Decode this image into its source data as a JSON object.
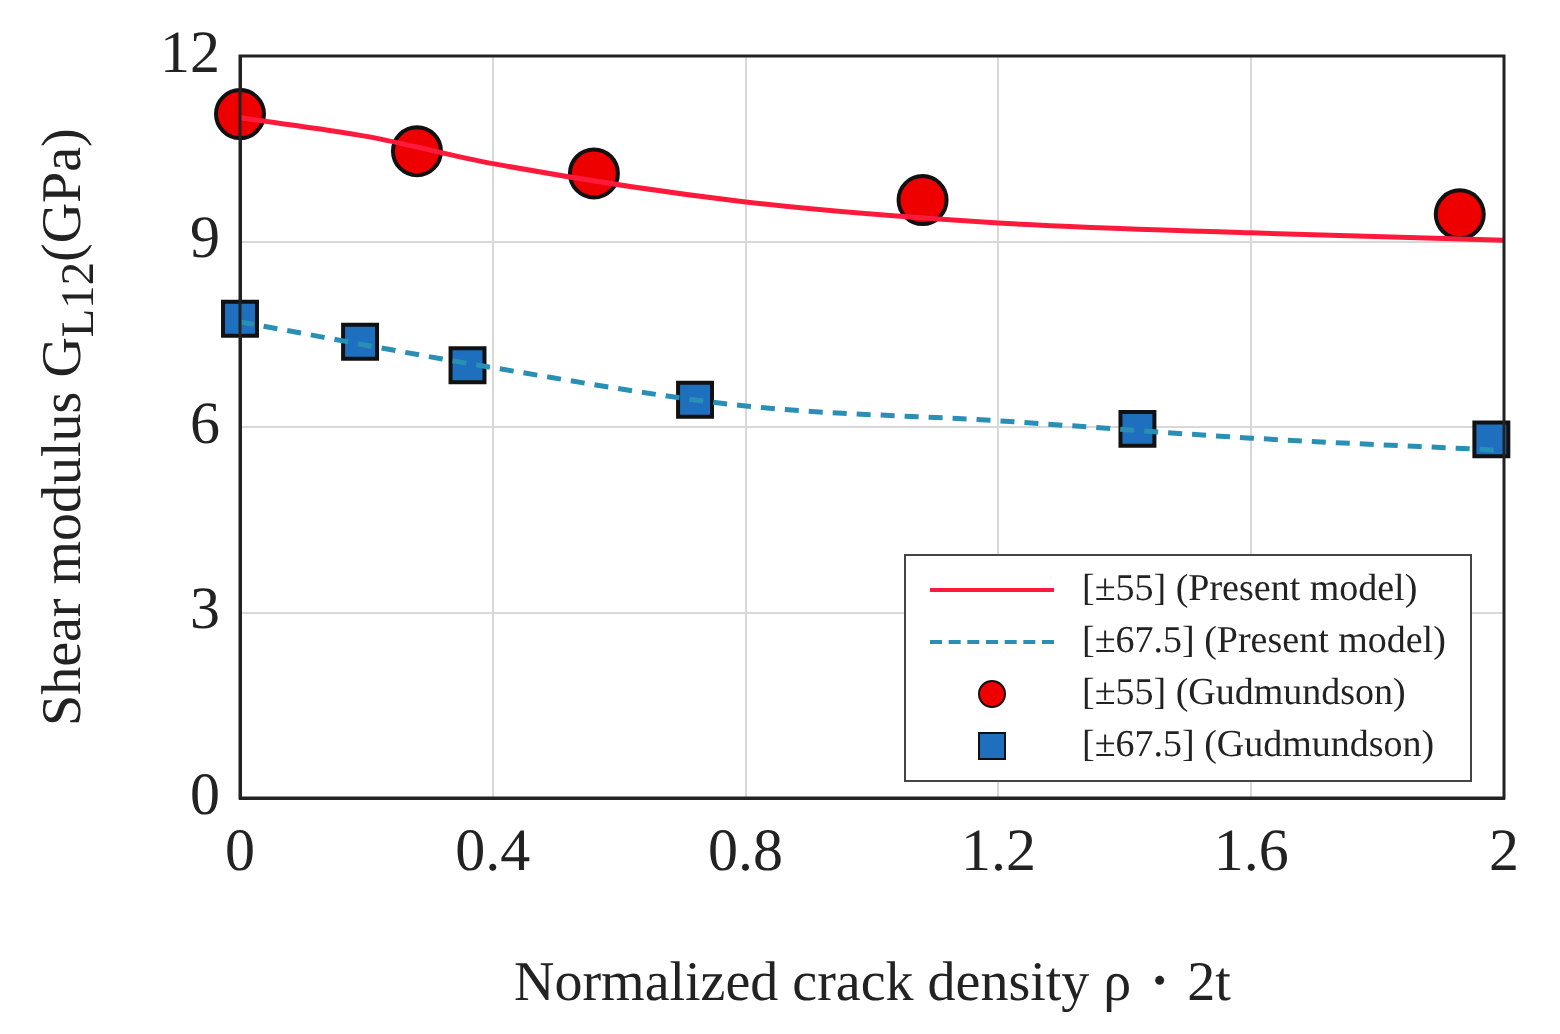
{
  "chart_data": {
    "type": "line",
    "xlabel": "Normalized crack density ρ・2t",
    "ylabel": "Shear modulus G$_{L12}$(GPa)",
    "xlim": [
      0,
      2
    ],
    "xticks": [
      0,
      0.4,
      0.8,
      1.2,
      1.6,
      2
    ],
    "ylim": [
      0,
      12
    ],
    "yticks": [
      0,
      3,
      6,
      9,
      12
    ],
    "grid": true,
    "legend": "bottom right",
    "series": [
      {
        "name": "[±55] (Present model)",
        "color": "#ff1a3c",
        "line_style": "solid",
        "marker": "none",
        "x": [
          0,
          0.2,
          0.4,
          0.8,
          1.2,
          1.6,
          2
        ],
        "values": [
          11.0,
          10.7,
          10.26,
          9.64,
          9.3,
          9.14,
          9.02
        ]
      },
      {
        "name": "[±67.5] (Present model)",
        "color": "#2a8fb5",
        "line_style": "dashed",
        "marker": "none",
        "x": [
          0,
          0.4,
          0.8,
          1.2,
          1.6,
          2
        ],
        "values": [
          7.7,
          6.96,
          6.34,
          6.1,
          5.82,
          5.62
        ]
      },
      {
        "name": "[±55] (Gudmundson)",
        "type": "scatter",
        "color": "#ee0000",
        "marker": "circle",
        "x": [
          0,
          0.28,
          0.56,
          1.08,
          1.93
        ],
        "values": [
          11.06,
          10.46,
          10.1,
          9.67,
          9.44
        ]
      },
      {
        "name": "[±67.5] (Gudmundson)",
        "type": "scatter",
        "color": "#1f6fbf",
        "marker": "square",
        "x": [
          0,
          0.19,
          0.36,
          0.72,
          1.42,
          1.98
        ],
        "values": [
          7.75,
          7.38,
          7.0,
          6.44,
          5.97,
          5.8
        ]
      }
    ]
  }
}
